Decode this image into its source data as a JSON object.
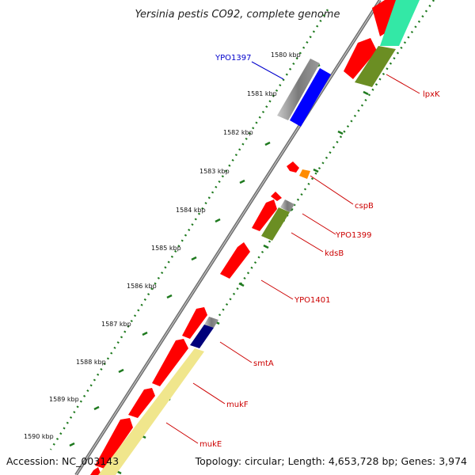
{
  "title": "Yersinia pestis CO92, complete genome",
  "footer": {
    "accession": "Accession: NC_003143",
    "topology": "Topology: circular; Length: 4,653,728 bp; Genes: 3,974"
  },
  "ticks": [
    "1580 kbp",
    "1581 kbp",
    "1582 kbp",
    "1583 kbp",
    "1584 kbp",
    "1585 kbp",
    "1586 kbp",
    "1587 kbp",
    "1588 kbp",
    "1589 kbp",
    "1590 kbp"
  ],
  "gene_labels": {
    "YPO1397": "YPO1397",
    "lpxK": "lpxK",
    "cspB": "cspB",
    "YPO1399": "YPO1399",
    "kdsB": "kdsB",
    "YPO1401": "YPO1401",
    "smtA": "smtA",
    "mukF": "mukF",
    "mukE": "mukE"
  },
  "colors": {
    "backbone": "#8a8a8a",
    "tick_marks": "#1f7a1f",
    "cds": "#ff0000",
    "gray_feature": "#707070",
    "blue_feature": "#0000ff",
    "navy_feature": "#00007a",
    "orange_feature": "#ff8c00",
    "olive_feature": "#6b8e23",
    "teal_feature": "#33e8a6",
    "yellow_feature": "#f0e68c",
    "label_red": "#cc0000",
    "label_blue": "#0000cc"
  }
}
